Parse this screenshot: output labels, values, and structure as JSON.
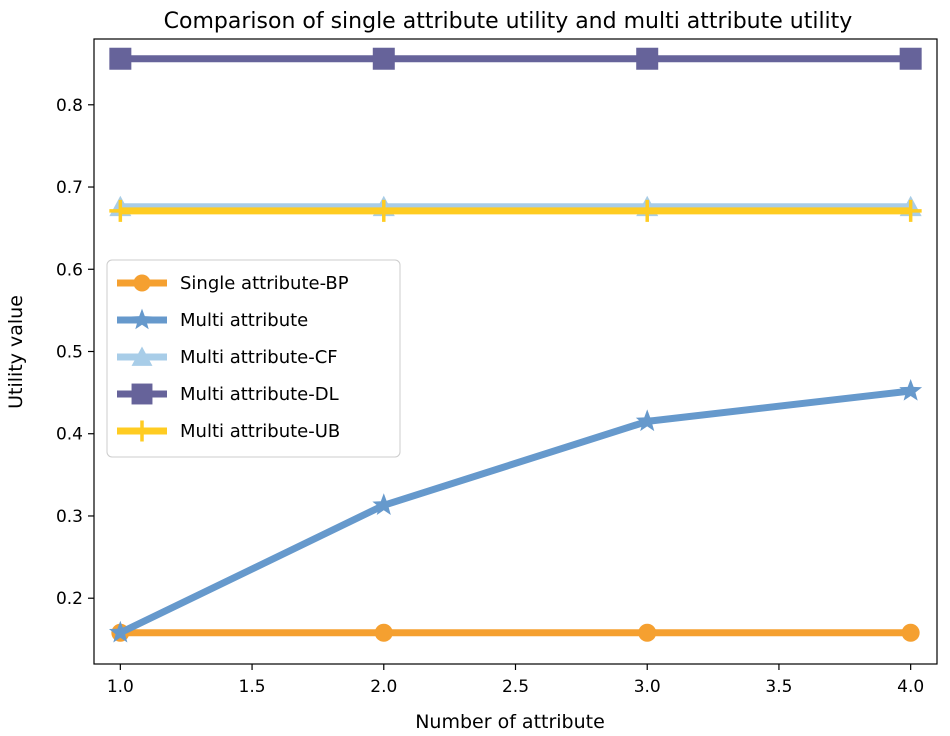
{
  "chart_data": {
    "type": "line",
    "title": "Comparison of single attribute utility and multi attribute utility",
    "xlabel": "Number of attribute",
    "ylabel": "Utility value",
    "xlim": [
      0.9,
      4.1
    ],
    "ylim": [
      0.12,
      0.88
    ],
    "x_ticks": [
      "1.0",
      "1.5",
      "2.0",
      "2.5",
      "3.0",
      "3.5",
      "4.0"
    ],
    "y_ticks": [
      "0.2",
      "0.3",
      "0.4",
      "0.5",
      "0.6",
      "0.7",
      "0.8"
    ],
    "legend_position": "center-left",
    "grid": false,
    "x": [
      1.0,
      2.0,
      3.0,
      4.0
    ],
    "series": [
      {
        "name": "Single attribute-BP",
        "color": "#f5a030",
        "marker": "circle",
        "values": [
          0.158,
          0.158,
          0.158,
          0.158
        ]
      },
      {
        "name": "Multi attribute",
        "color": "#6699cc",
        "marker": "star",
        "values": [
          0.158,
          0.313,
          0.415,
          0.452
        ]
      },
      {
        "name": "Multi attribute-CF",
        "color": "#a8cde8",
        "marker": "triangle",
        "values": [
          0.676,
          0.676,
          0.676,
          0.676
        ]
      },
      {
        "name": "Multi attribute-DL",
        "color": "#66639a",
        "marker": "square",
        "values": [
          0.856,
          0.856,
          0.856,
          0.856
        ]
      },
      {
        "name": "Multi attribute-UB",
        "color": "#ffcc22",
        "marker": "plus",
        "values": [
          0.671,
          0.671,
          0.671,
          0.671
        ]
      }
    ]
  }
}
